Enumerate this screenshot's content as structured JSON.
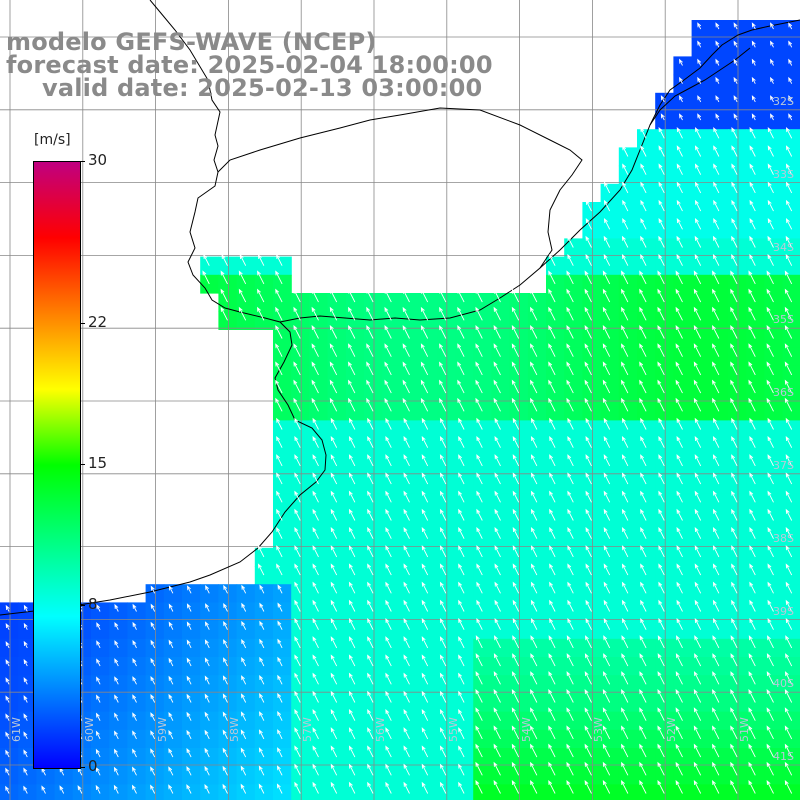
{
  "title": {
    "model": "modelo GEFS-WAVE (NCEP)",
    "forecast": "forecast date: 2025-02-04 18:00:00",
    "valid": "valid date: 2025-02-13 03:00:00"
  },
  "colorbar": {
    "unit": "[m/s]",
    "min": 0,
    "max": 30,
    "tick_labels": [
      "30",
      "22",
      "15",
      "8",
      "0"
    ],
    "tick_values": [
      30,
      22,
      15,
      8,
      0
    ],
    "colors": [
      "#0000ff",
      "#0080ff",
      "#00ffff",
      "#00ff80",
      "#00ff00",
      "#ffff00",
      "#ff8000",
      "#ff0000",
      "#c00080"
    ]
  },
  "grid": {
    "lat_labels": [
      "32S",
      "33S",
      "34S",
      "35S",
      "36S",
      "37S",
      "38S",
      "39S",
      "40S",
      "41S"
    ],
    "lon_labels": [
      "61W",
      "60W",
      "59W",
      "58W",
      "57W",
      "56W",
      "55W",
      "54W",
      "53W",
      "52W",
      "51W"
    ]
  },
  "wind_field": {
    "direction": "from southeast toward northwest",
    "speed_range_ms": [
      2,
      13
    ]
  },
  "colors": {
    "land": "#ffffff",
    "grid": "#888888",
    "arrow": "#ffffff",
    "coast": "#000000"
  }
}
